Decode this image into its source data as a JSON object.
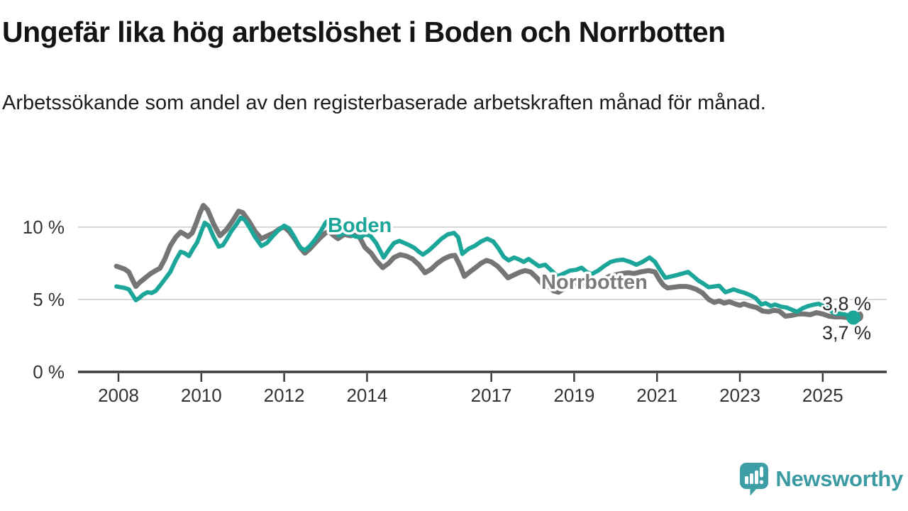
{
  "header": {
    "title": "Ungefär lika hög arbetslöshet i Boden och Norrbotten",
    "subtitle": "Arbetssökande som andel av den registerbaserade arbetskraften månad för månad."
  },
  "chart_data": {
    "type": "line",
    "title": "Ungefär lika hög arbetslöshet i Boden och Norrbotten",
    "subtitle": "Arbetssökande som andel av den registerbaserade arbetskraften månad för månad.",
    "unit": "%",
    "grid": "horizontal",
    "legend_position": "inline-labels",
    "xlim": [
      2007.9,
      2026.6
    ],
    "ylim": [
      0,
      13.4
    ],
    "x_ticks": {
      "years": [
        2008,
        2010,
        2012,
        2014,
        2017,
        2019,
        2021,
        2023,
        2025
      ],
      "labels": [
        "2008",
        "2010",
        "2012",
        "2014",
        "2017",
        "2019",
        "2021",
        "2023",
        "2025"
      ]
    },
    "y_ticks": [
      {
        "value": 10,
        "label": "10 %"
      },
      {
        "value": 5,
        "label": "5 %"
      },
      {
        "value": 0,
        "label": "0 %"
      }
    ],
    "series": [
      {
        "name": "Boden",
        "color": "#1CA69A",
        "end_label": "3,8 %",
        "final_value": 3.8,
        "points": [
          [
            2007.95,
            5.9
          ],
          [
            2008.05,
            5.85
          ],
          [
            2008.15,
            5.8
          ],
          [
            2008.25,
            5.7
          ],
          [
            2008.33,
            5.35
          ],
          [
            2008.42,
            4.95
          ],
          [
            2008.5,
            5.1
          ],
          [
            2008.6,
            5.35
          ],
          [
            2008.7,
            5.5
          ],
          [
            2008.8,
            5.45
          ],
          [
            2008.9,
            5.6
          ],
          [
            2009.0,
            5.95
          ],
          [
            2009.12,
            6.4
          ],
          [
            2009.25,
            6.9
          ],
          [
            2009.38,
            7.7
          ],
          [
            2009.5,
            8.3
          ],
          [
            2009.6,
            8.2
          ],
          [
            2009.7,
            8.0
          ],
          [
            2009.8,
            8.5
          ],
          [
            2009.9,
            8.95
          ],
          [
            2010.0,
            9.7
          ],
          [
            2010.08,
            10.3
          ],
          [
            2010.18,
            10.1
          ],
          [
            2010.3,
            9.3
          ],
          [
            2010.42,
            8.65
          ],
          [
            2010.52,
            8.75
          ],
          [
            2010.62,
            9.2
          ],
          [
            2010.72,
            9.7
          ],
          [
            2010.85,
            10.2
          ],
          [
            2010.95,
            10.65
          ],
          [
            2011.05,
            10.5
          ],
          [
            2011.18,
            9.9
          ],
          [
            2011.3,
            9.3
          ],
          [
            2011.45,
            8.7
          ],
          [
            2011.58,
            8.9
          ],
          [
            2011.7,
            9.3
          ],
          [
            2011.85,
            9.75
          ],
          [
            2012.0,
            10.1
          ],
          [
            2012.12,
            9.9
          ],
          [
            2012.25,
            9.3
          ],
          [
            2012.38,
            8.6
          ],
          [
            2012.5,
            8.4
          ],
          [
            2012.62,
            8.7
          ],
          [
            2012.75,
            9.15
          ],
          [
            2012.88,
            9.7
          ],
          [
            2013.0,
            10.3
          ],
          [
            2013.08,
            10.5
          ],
          [
            2013.2,
            10.1
          ],
          [
            2013.32,
            9.4
          ],
          [
            2013.45,
            9.6
          ],
          [
            2013.6,
            9.5
          ],
          [
            2013.72,
            9.35
          ],
          [
            2013.85,
            9.3
          ],
          [
            2013.95,
            9.5
          ],
          [
            2014.08,
            9.4
          ],
          [
            2014.22,
            8.9
          ],
          [
            2014.4,
            7.9
          ],
          [
            2014.52,
            8.4
          ],
          [
            2014.65,
            8.9
          ],
          [
            2014.78,
            9.05
          ],
          [
            2014.9,
            8.9
          ],
          [
            2015.02,
            8.75
          ],
          [
            2015.15,
            8.55
          ],
          [
            2015.25,
            8.3
          ],
          [
            2015.35,
            8.1
          ],
          [
            2015.5,
            8.4
          ],
          [
            2015.65,
            8.8
          ],
          [
            2015.8,
            9.2
          ],
          [
            2015.95,
            9.5
          ],
          [
            2016.1,
            9.6
          ],
          [
            2016.2,
            9.3
          ],
          [
            2016.3,
            8.15
          ],
          [
            2016.45,
            8.5
          ],
          [
            2016.6,
            8.7
          ],
          [
            2016.75,
            9.0
          ],
          [
            2016.9,
            9.2
          ],
          [
            2017.05,
            9.0
          ],
          [
            2017.18,
            8.5
          ],
          [
            2017.3,
            7.95
          ],
          [
            2017.42,
            7.7
          ],
          [
            2017.55,
            7.9
          ],
          [
            2017.68,
            7.75
          ],
          [
            2017.78,
            7.6
          ],
          [
            2017.9,
            7.8
          ],
          [
            2018.05,
            7.5
          ],
          [
            2018.15,
            7.3
          ],
          [
            2018.3,
            7.4
          ],
          [
            2018.45,
            7.0
          ],
          [
            2018.6,
            6.6
          ],
          [
            2018.75,
            6.8
          ],
          [
            2018.9,
            7.0
          ],
          [
            2019.05,
            7.05
          ],
          [
            2019.18,
            7.2
          ],
          [
            2019.3,
            6.9
          ],
          [
            2019.42,
            6.75
          ],
          [
            2019.58,
            7.0
          ],
          [
            2019.72,
            7.3
          ],
          [
            2019.88,
            7.6
          ],
          [
            2020.02,
            7.7
          ],
          [
            2020.18,
            7.75
          ],
          [
            2020.35,
            7.6
          ],
          [
            2020.5,
            7.4
          ],
          [
            2020.65,
            7.6
          ],
          [
            2020.82,
            7.9
          ],
          [
            2020.95,
            7.6
          ],
          [
            2021.08,
            7.0
          ],
          [
            2021.2,
            6.5
          ],
          [
            2021.35,
            6.6
          ],
          [
            2021.5,
            6.7
          ],
          [
            2021.62,
            6.8
          ],
          [
            2021.75,
            6.9
          ],
          [
            2021.88,
            6.6
          ],
          [
            2022.0,
            6.3
          ],
          [
            2022.12,
            6.1
          ],
          [
            2022.25,
            5.85
          ],
          [
            2022.38,
            5.9
          ],
          [
            2022.5,
            5.95
          ],
          [
            2022.65,
            5.5
          ],
          [
            2022.75,
            5.6
          ],
          [
            2022.85,
            5.7
          ],
          [
            2023.0,
            5.55
          ],
          [
            2023.12,
            5.45
          ],
          [
            2023.25,
            5.3
          ],
          [
            2023.38,
            5.1
          ],
          [
            2023.52,
            4.65
          ],
          [
            2023.62,
            4.75
          ],
          [
            2023.75,
            4.55
          ],
          [
            2023.85,
            4.65
          ],
          [
            2024.0,
            4.5
          ],
          [
            2024.12,
            4.45
          ],
          [
            2024.25,
            4.3
          ],
          [
            2024.38,
            4.15
          ],
          [
            2024.52,
            4.4
          ],
          [
            2024.65,
            4.55
          ],
          [
            2024.8,
            4.65
          ],
          [
            2024.9,
            4.7
          ],
          [
            2025.02,
            4.55
          ],
          [
            2025.12,
            4.45
          ],
          [
            2025.25,
            4.1
          ],
          [
            2025.35,
            4.0
          ],
          [
            2025.45,
            4.05
          ],
          [
            2025.55,
            3.95
          ],
          [
            2025.65,
            3.9
          ],
          [
            2025.74,
            3.8
          ]
        ]
      },
      {
        "name": "Norrbotten",
        "color": "#757575",
        "end_label": "3,7 %",
        "final_value": 3.7,
        "points": [
          [
            2007.95,
            7.3
          ],
          [
            2008.05,
            7.2
          ],
          [
            2008.15,
            7.1
          ],
          [
            2008.25,
            6.9
          ],
          [
            2008.33,
            6.4
          ],
          [
            2008.42,
            5.9
          ],
          [
            2008.52,
            6.2
          ],
          [
            2008.65,
            6.5
          ],
          [
            2008.78,
            6.8
          ],
          [
            2008.9,
            7.0
          ],
          [
            2009.0,
            7.15
          ],
          [
            2009.12,
            7.8
          ],
          [
            2009.25,
            8.7
          ],
          [
            2009.38,
            9.3
          ],
          [
            2009.5,
            9.65
          ],
          [
            2009.6,
            9.5
          ],
          [
            2009.68,
            9.35
          ],
          [
            2009.78,
            9.6
          ],
          [
            2009.88,
            10.3
          ],
          [
            2009.97,
            11.0
          ],
          [
            2010.05,
            11.5
          ],
          [
            2010.15,
            11.2
          ],
          [
            2010.3,
            10.2
          ],
          [
            2010.45,
            9.4
          ],
          [
            2010.6,
            9.8
          ],
          [
            2010.75,
            10.4
          ],
          [
            2010.9,
            11.1
          ],
          [
            2011.0,
            11.0
          ],
          [
            2011.15,
            10.4
          ],
          [
            2011.3,
            9.7
          ],
          [
            2011.45,
            9.2
          ],
          [
            2011.6,
            9.4
          ],
          [
            2011.75,
            9.6
          ],
          [
            2011.9,
            9.9
          ],
          [
            2012.0,
            10.0
          ],
          [
            2012.12,
            9.7
          ],
          [
            2012.25,
            9.2
          ],
          [
            2012.38,
            8.6
          ],
          [
            2012.5,
            8.2
          ],
          [
            2012.62,
            8.5
          ],
          [
            2012.75,
            8.9
          ],
          [
            2012.88,
            9.3
          ],
          [
            2013.0,
            9.6
          ],
          [
            2013.08,
            9.7
          ],
          [
            2013.2,
            9.4
          ],
          [
            2013.3,
            9.2
          ],
          [
            2013.45,
            9.5
          ],
          [
            2013.6,
            9.4
          ],
          [
            2013.72,
            9.45
          ],
          [
            2013.82,
            9.3
          ],
          [
            2013.95,
            8.6
          ],
          [
            2014.1,
            8.2
          ],
          [
            2014.22,
            7.7
          ],
          [
            2014.38,
            7.2
          ],
          [
            2014.52,
            7.5
          ],
          [
            2014.65,
            7.9
          ],
          [
            2014.8,
            8.1
          ],
          [
            2014.95,
            8.0
          ],
          [
            2015.1,
            7.8
          ],
          [
            2015.25,
            7.4
          ],
          [
            2015.4,
            6.85
          ],
          [
            2015.55,
            7.1
          ],
          [
            2015.7,
            7.5
          ],
          [
            2015.85,
            7.8
          ],
          [
            2016.0,
            8.0
          ],
          [
            2016.12,
            8.05
          ],
          [
            2016.25,
            7.3
          ],
          [
            2016.35,
            6.6
          ],
          [
            2016.48,
            6.9
          ],
          [
            2016.62,
            7.2
          ],
          [
            2016.75,
            7.5
          ],
          [
            2016.88,
            7.7
          ],
          [
            2017.0,
            7.6
          ],
          [
            2017.15,
            7.3
          ],
          [
            2017.28,
            6.9
          ],
          [
            2017.4,
            6.5
          ],
          [
            2017.55,
            6.7
          ],
          [
            2017.7,
            6.9
          ],
          [
            2017.82,
            7.0
          ],
          [
            2017.95,
            6.9
          ],
          [
            2018.1,
            6.5
          ],
          [
            2018.22,
            6.1
          ],
          [
            2018.35,
            6.0
          ],
          [
            2018.5,
            5.6
          ],
          [
            2018.62,
            5.5
          ],
          [
            2018.78,
            5.8
          ],
          [
            2018.9,
            6.0
          ],
          [
            2019.05,
            6.1
          ],
          [
            2019.25,
            6.0
          ],
          [
            2019.4,
            5.9
          ],
          [
            2019.55,
            6.1
          ],
          [
            2019.7,
            6.4
          ],
          [
            2019.85,
            6.6
          ],
          [
            2020.0,
            6.7
          ],
          [
            2020.15,
            6.8
          ],
          [
            2020.3,
            6.85
          ],
          [
            2020.45,
            6.8
          ],
          [
            2020.6,
            6.9
          ],
          [
            2020.8,
            7.0
          ],
          [
            2020.95,
            6.9
          ],
          [
            2021.05,
            6.4
          ],
          [
            2021.15,
            6.0
          ],
          [
            2021.25,
            5.8
          ],
          [
            2021.4,
            5.85
          ],
          [
            2021.55,
            5.9
          ],
          [
            2021.7,
            5.9
          ],
          [
            2021.8,
            5.85
          ],
          [
            2021.95,
            5.7
          ],
          [
            2022.1,
            5.45
          ],
          [
            2022.25,
            5.0
          ],
          [
            2022.38,
            4.8
          ],
          [
            2022.5,
            4.9
          ],
          [
            2022.62,
            4.75
          ],
          [
            2022.75,
            4.85
          ],
          [
            2022.88,
            4.7
          ],
          [
            2023.0,
            4.6
          ],
          [
            2023.1,
            4.7
          ],
          [
            2023.25,
            4.55
          ],
          [
            2023.4,
            4.45
          ],
          [
            2023.55,
            4.2
          ],
          [
            2023.7,
            4.15
          ],
          [
            2023.82,
            4.25
          ],
          [
            2023.95,
            4.2
          ],
          [
            2024.1,
            3.85
          ],
          [
            2024.25,
            3.9
          ],
          [
            2024.4,
            4.0
          ],
          [
            2024.55,
            4.0
          ],
          [
            2024.7,
            3.95
          ],
          [
            2024.85,
            4.1
          ],
          [
            2025.0,
            4.0
          ],
          [
            2025.15,
            3.85
          ],
          [
            2025.3,
            3.8
          ],
          [
            2025.45,
            3.8
          ],
          [
            2025.6,
            3.75
          ],
          [
            2025.74,
            3.7
          ]
        ]
      }
    ]
  },
  "branding": {
    "brand": "Newsworthy",
    "logo_icon": "bar-chart-speech-bubble"
  },
  "colors": {
    "boden": "#1CA69A",
    "norrbotten": "#757575",
    "axis": "#3b3b3b",
    "grid": "#d8d8d8",
    "tick_text": "#333333",
    "value_text": "#2b2b2b",
    "brand_teal": "#3E9EA6"
  }
}
